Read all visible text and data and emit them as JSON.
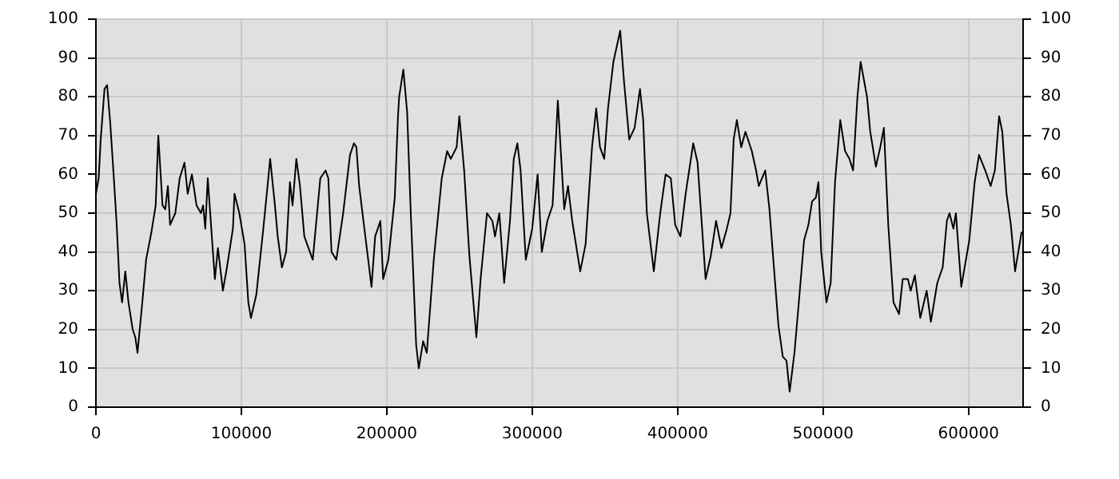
{
  "chart_data": {
    "type": "line",
    "x": [
      0,
      1900,
      3300,
      5900,
      7700,
      9900,
      12500,
      14300,
      16200,
      18000,
      20200,
      22400,
      25300,
      27100,
      28600,
      31900,
      34500,
      38100,
      41100,
      42900,
      45800,
      47700,
      49500,
      51000,
      54600,
      57600,
      60900,
      63100,
      66000,
      69200,
      72200,
      73700,
      75200,
      76900,
      79900,
      81800,
      83900,
      87300,
      90100,
      94200,
      95300,
      98600,
      102200,
      104800,
      106600,
      110300,
      115100,
      118000,
      119800,
      123100,
      125000,
      127900,
      130800,
      133400,
      135200,
      137800,
      140300,
      143300,
      149100,
      154300,
      157900,
      159800,
      162000,
      165300,
      170000,
      174700,
      177400,
      179100,
      181000,
      184600,
      189500,
      192000,
      195600,
      197500,
      201100,
      205500,
      207700,
      208500,
      211400,
      214000,
      216500,
      220200,
      222000,
      225000,
      227500,
      232300,
      237800,
      241500,
      244000,
      248000,
      249900,
      253200,
      256800,
      261600,
      264500,
      268900,
      272600,
      274400,
      277400,
      280700,
      284700,
      287300,
      289800,
      292000,
      295600,
      300000,
      303700,
      306600,
      310400,
      314000,
      317600,
      322000,
      324600,
      327500,
      333000,
      336700,
      341100,
      344000,
      346600,
      349500,
      352100,
      355800,
      360500,
      363100,
      366700,
      370400,
      374100,
      376300,
      378800,
      383600,
      388000,
      391700,
      395300,
      398300,
      401900,
      405500,
      410700,
      413700,
      419200,
      422800,
      426400,
      430100,
      433800,
      436300,
      438500,
      440700,
      443700,
      446600,
      451000,
      453900,
      455800,
      460200,
      463100,
      466800,
      469300,
      472300,
      474800,
      477000,
      480300,
      483300,
      486900,
      489900,
      492400,
      495000,
      496800,
      498700,
      502300,
      505200,
      508200,
      511800,
      515100,
      518100,
      520600,
      523600,
      525800,
      530200,
      532400,
      536300,
      539300,
      541800,
      544800,
      548400,
      552200,
      554700,
      558300,
      560200,
      563100,
      566800,
      571200,
      574100,
      578500,
      582200,
      585100,
      586900,
      589600,
      591300,
      595000,
      600500,
      604200,
      607200,
      611500,
      615200,
      618100,
      621000,
      623200,
      626100,
      629100,
      632000,
      634200,
      636400,
      637500
    ],
    "series": [
      {
        "color": "#000000",
        "values": [
          55,
          59,
          69,
          82,
          83,
          73,
          58,
          47,
          32,
          27,
          35,
          27,
          20,
          18,
          14,
          27,
          38,
          45,
          52,
          70,
          52,
          51,
          57,
          47,
          50,
          59,
          63,
          55,
          60,
          52,
          50,
          52,
          46,
          59,
          43,
          33,
          41,
          30,
          36,
          46,
          55,
          50,
          42,
          27,
          23,
          29,
          46,
          57,
          64,
          52,
          44,
          36,
          40,
          58,
          52,
          64,
          57,
          44,
          38,
          59,
          61,
          59,
          40,
          38,
          50,
          65,
          68,
          67,
          57,
          46,
          31,
          44,
          48,
          33,
          38,
          54,
          75,
          80,
          87,
          76,
          50,
          16,
          10,
          17,
          14,
          38,
          59,
          66,
          64,
          67,
          75,
          61,
          39,
          18,
          33,
          50,
          48,
          44,
          50,
          32,
          48,
          64,
          68,
          61,
          38,
          46,
          60,
          40,
          48,
          52,
          79,
          51,
          57,
          48,
          35,
          42,
          67,
          77,
          67,
          64,
          77,
          89,
          97,
          84,
          69,
          72,
          82,
          74,
          50,
          35,
          50,
          60,
          59,
          47,
          44,
          55,
          68,
          63,
          33,
          39,
          48,
          41,
          46,
          50,
          69,
          74,
          67,
          71,
          66,
          61,
          57,
          61,
          51,
          33,
          21,
          13,
          12,
          4,
          14,
          27,
          43,
          47,
          53,
          54,
          58,
          40,
          27,
          32,
          58,
          74,
          66,
          64,
          61,
          80,
          89,
          80,
          71,
          62,
          67,
          72,
          47,
          27,
          24,
          33,
          33,
          30,
          34,
          23,
          30,
          22,
          32,
          36,
          48,
          50,
          46,
          50,
          31,
          43,
          58,
          65,
          61,
          57,
          61,
          75,
          71,
          55,
          47,
          35,
          40,
          45,
          45
        ]
      }
    ],
    "xlim": [
      0,
      637500
    ],
    "xticks": [
      0,
      100000,
      200000,
      300000,
      400000,
      500000,
      600000
    ],
    "ylim": [
      0,
      100
    ],
    "yticks": [
      0,
      10,
      20,
      30,
      40,
      50,
      60,
      70,
      80,
      90,
      100
    ],
    "y2lim": [
      0,
      100
    ],
    "y2ticks": [
      0,
      10,
      20,
      30,
      40,
      50,
      60,
      70,
      80,
      90,
      100
    ],
    "grid": true,
    "legend": false,
    "marker": "none",
    "line_style": "solid"
  }
}
